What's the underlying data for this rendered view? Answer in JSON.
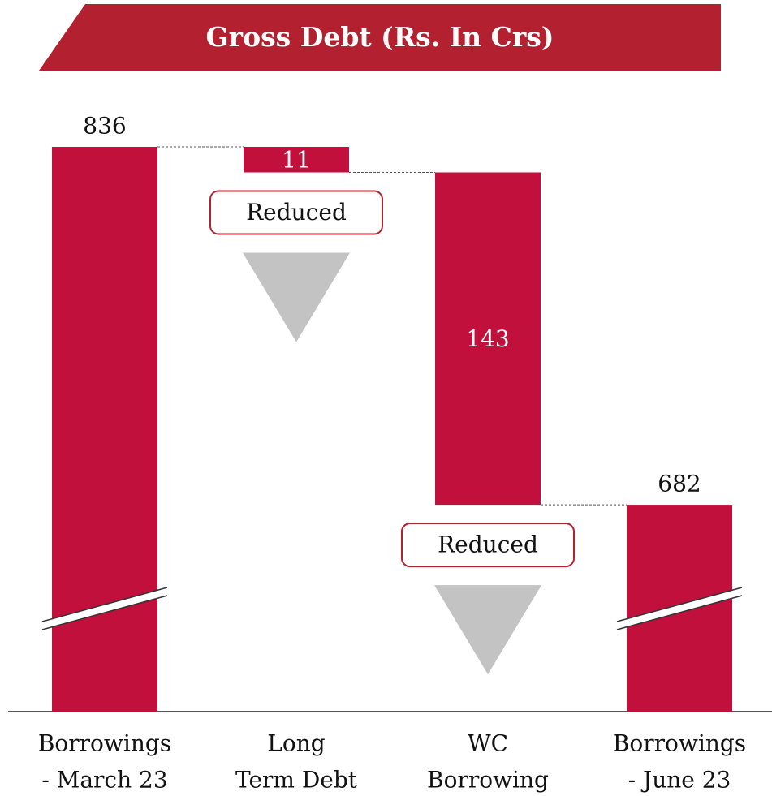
{
  "chart_data": {
    "type": "waterfall",
    "title": "Gross Debt (Rs. In Crs)",
    "categories": [
      [
        "Borrowings",
        "- March 23"
      ],
      [
        "Long",
        "Term Debt"
      ],
      [
        "WC",
        "Borrowing"
      ],
      [
        "Borrowings",
        "- June 23"
      ]
    ],
    "values": [
      836,
      11,
      143,
      682
    ],
    "measures": [
      "absolute",
      "decrease",
      "decrease",
      "total"
    ],
    "annotations": [
      "Reduced",
      "Reduced"
    ],
    "color": "#c1103c",
    "ylim": [
      593,
      836
    ],
    "axis_break": true
  }
}
